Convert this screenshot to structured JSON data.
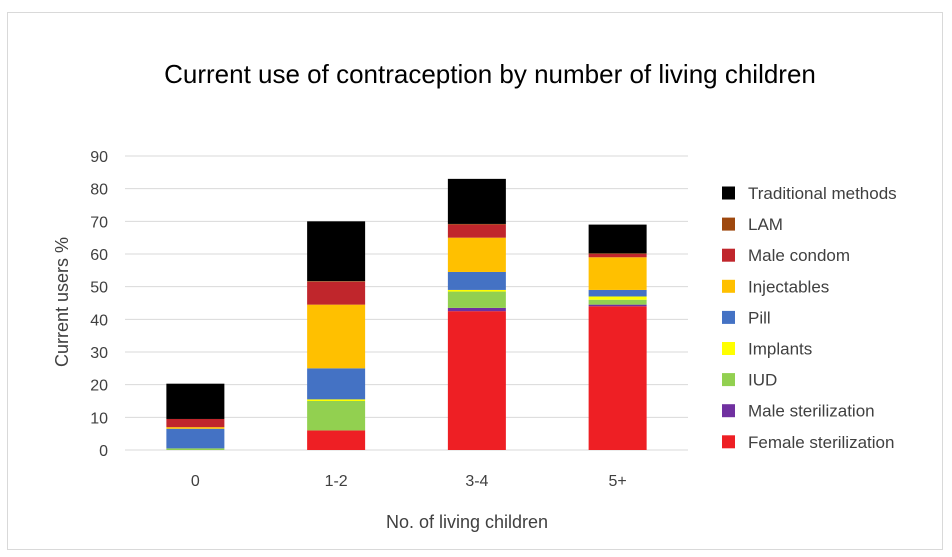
{
  "chart_data": {
    "type": "bar",
    "stacked": true,
    "title": "Current use of contraception by number of living children",
    "xlabel": "No. of living children",
    "ylabel": "Current users %",
    "ylim": [
      0,
      90
    ],
    "yticks": [
      0,
      10,
      20,
      30,
      40,
      50,
      60,
      70,
      80,
      90
    ],
    "grid": true,
    "legend_position": "right",
    "categories": [
      "0",
      "1-2",
      "3-4",
      "5+"
    ],
    "series": [
      {
        "name": "Female sterilization",
        "color": "#ee1f24",
        "values": [
          0,
          6,
          42.5,
          44
        ]
      },
      {
        "name": "Male sterilization",
        "color": "#7030a0",
        "values": [
          0,
          0,
          1,
          0.5
        ]
      },
      {
        "name": "IUD",
        "color": "#92d050",
        "values": [
          0.5,
          9,
          5,
          1.5
        ]
      },
      {
        "name": "Implants",
        "color": "#ffff00",
        "values": [
          0,
          0.5,
          0.5,
          1
        ]
      },
      {
        "name": "Pill",
        "color": "#4472c4",
        "values": [
          6,
          9.5,
          5.5,
          2
        ]
      },
      {
        "name": "Injectables",
        "color": "#ffc000",
        "values": [
          0.5,
          19.5,
          10.5,
          10
        ]
      },
      {
        "name": "Male condom",
        "color": "#c0262c",
        "values": [
          2.5,
          7,
          4,
          1
        ]
      },
      {
        "name": "LAM",
        "color": "#9e480e",
        "values": [
          0,
          0.2,
          0.2,
          0.2
        ]
      },
      {
        "name": "Traditional methods",
        "color": "#000000",
        "values": [
          10.8,
          18.3,
          13.8,
          8.8
        ]
      }
    ]
  }
}
